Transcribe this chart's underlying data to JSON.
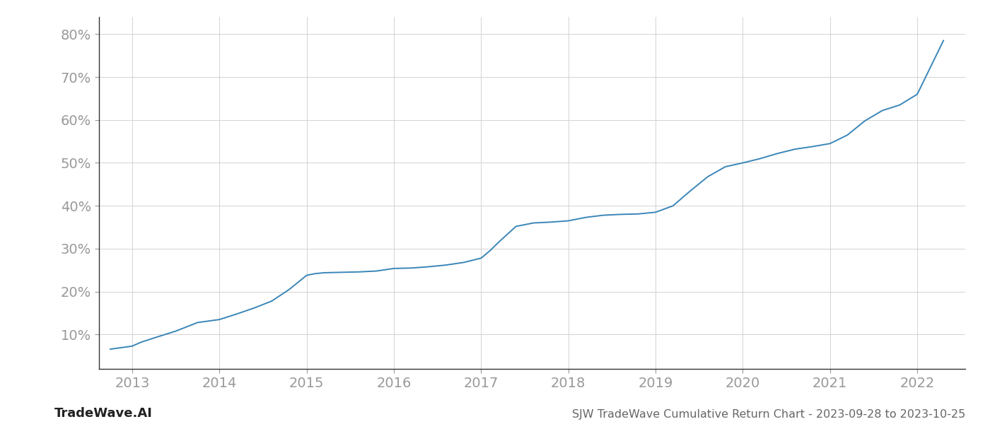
{
  "title": "SJW TradeWave Cumulative Return Chart - 2023-09-28 to 2023-10-25",
  "watermark": "TradeWave.AI",
  "line_color": "#3a86b8",
  "background_color": "#ffffff",
  "grid_color": "#cccccc",
  "tick_color": "#999999",
  "title_color": "#666666",
  "watermark_color": "#222222",
  "xlim": [
    2012.62,
    2022.55
  ],
  "ylim": [
    0.02,
    0.84
  ],
  "yticks": [
    0.1,
    0.2,
    0.3,
    0.4,
    0.5,
    0.6,
    0.7,
    0.8
  ],
  "xticks": [
    2013,
    2014,
    2015,
    2016,
    2017,
    2018,
    2019,
    2020,
    2021,
    2022
  ],
  "x": [
    2012.75,
    2013.0,
    2013.1,
    2013.25,
    2013.5,
    2013.75,
    2014.0,
    2014.2,
    2014.4,
    2014.6,
    2014.8,
    2015.0,
    2015.1,
    2015.2,
    2015.4,
    2015.6,
    2015.8,
    2016.0,
    2016.2,
    2016.4,
    2016.6,
    2016.8,
    2017.0,
    2017.1,
    2017.2,
    2017.4,
    2017.6,
    2017.8,
    2018.0,
    2018.2,
    2018.4,
    2018.6,
    2018.8,
    2019.0,
    2019.2,
    2019.4,
    2019.6,
    2019.8,
    2020.0,
    2020.2,
    2020.4,
    2020.6,
    2020.8,
    2021.0,
    2021.2,
    2021.4,
    2021.6,
    2021.8,
    2022.0,
    2022.3
  ],
  "y": [
    0.066,
    0.073,
    0.082,
    0.092,
    0.108,
    0.128,
    0.135,
    0.148,
    0.162,
    0.178,
    0.205,
    0.238,
    0.242,
    0.244,
    0.245,
    0.246,
    0.248,
    0.254,
    0.255,
    0.258,
    0.262,
    0.268,
    0.278,
    0.295,
    0.315,
    0.352,
    0.36,
    0.362,
    0.365,
    0.373,
    0.378,
    0.38,
    0.381,
    0.385,
    0.4,
    0.435,
    0.468,
    0.491,
    0.5,
    0.51,
    0.522,
    0.532,
    0.538,
    0.545,
    0.565,
    0.598,
    0.622,
    0.635,
    0.66,
    0.785
  ],
  "line_width": 1.4,
  "tick_fontsize": 14,
  "title_fontsize": 11.5,
  "watermark_fontsize": 13
}
